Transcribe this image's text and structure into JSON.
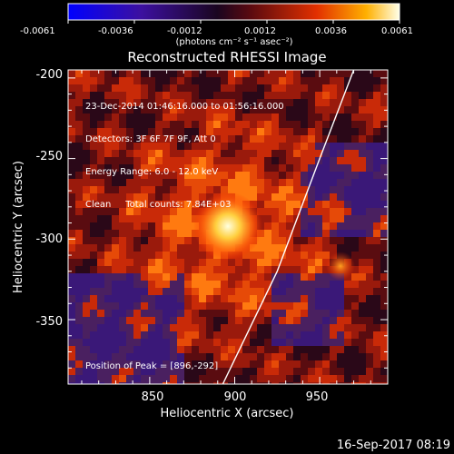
{
  "colorbar": {
    "ticks": [
      "-0.0061",
      "-0.0036",
      "-0.0012",
      "0.0012",
      "0.0036",
      "0.0061"
    ],
    "unit_label": "(photons cm⁻² s⁻¹ asec⁻²)"
  },
  "image": {
    "title": "Reconstructed RHESSI Image",
    "info_lines": [
      "23-Dec-2014 01:46:16.000 to 01:56:16.000",
      "Detectors: 3F 6F 7F 9F, Att 0",
      "Energy Range: 6.0 - 12.0 keV",
      "Clean     Total counts: 7.84E+03"
    ],
    "peak_label": "Position of Peak = [896,-292]",
    "xlabel": "Heliocentric X (arcsec)",
    "ylabel": "Heliocentric Y (arcsec)",
    "xticks": [
      "850",
      "900",
      "950"
    ],
    "yticks": [
      "-200",
      "-250",
      "-300",
      "-350"
    ],
    "xticks_values": [
      850,
      900,
      950
    ],
    "yticks_values": [
      -200,
      -250,
      -300,
      -350
    ],
    "xlim": [
      802,
      990
    ],
    "ylim": [
      -390,
      -195
    ],
    "peak": [
      896,
      -292
    ],
    "limb_points": [
      [
        970,
        -195
      ],
      [
        950,
        -250
      ],
      [
        925,
        -320
      ],
      [
        893,
        -390
      ]
    ]
  },
  "timestamp": "16-Sep-2017 08:19"
}
